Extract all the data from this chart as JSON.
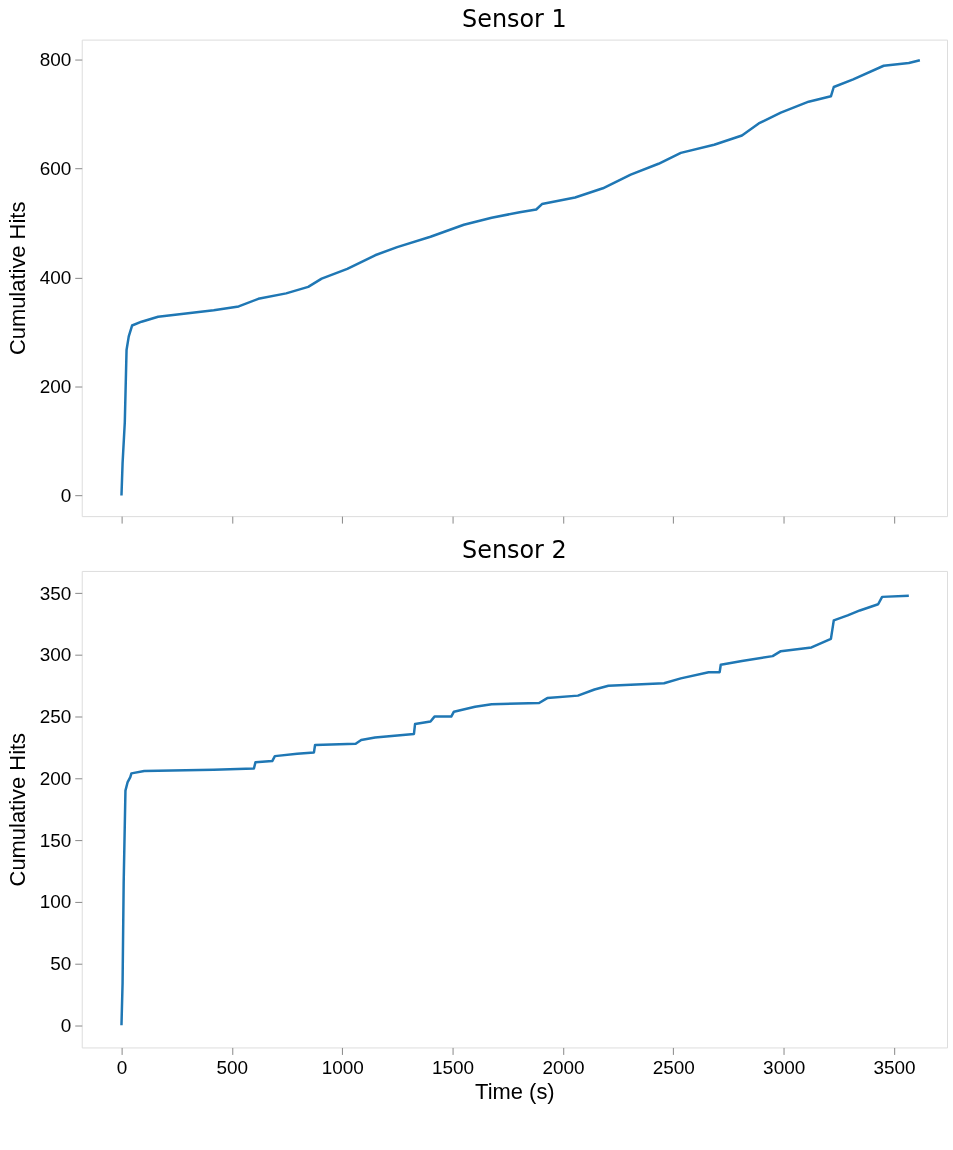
{
  "chart_data": [
    {
      "type": "line",
      "title": "Sensor 1",
      "ylabel": "Cumulative Hits",
      "xlim": [
        -180,
        3740
      ],
      "xticks": [
        0,
        500,
        1000,
        1500,
        2000,
        2500,
        3000,
        3500
      ],
      "ylim": [
        -38,
        837
      ],
      "yticks": [
        0,
        200,
        400,
        600,
        800
      ],
      "tick_labels": "y",
      "grid": false,
      "marker": "none",
      "series": [
        {
          "color": "#1f77b4",
          "x": [
            0,
            5,
            15,
            23,
            33,
            48,
            91,
            166,
            292,
            418,
            531,
            620,
            746,
            846,
            907,
            1023,
            1149,
            1249,
            1400,
            1551,
            1677,
            1804,
            1879,
            1905,
            2055,
            2181,
            2307,
            2433,
            2534,
            2685,
            2811,
            2887,
            2987,
            3113,
            3214,
            3227,
            3315,
            3453,
            3567,
            3617
          ],
          "values": [
            0,
            59,
            134,
            267,
            292,
            312,
            319,
            328,
            334,
            340,
            347,
            361,
            371,
            383,
            398,
            416,
            441,
            456,
            475,
            497,
            510,
            520,
            525,
            535,
            547,
            564,
            589,
            609,
            629,
            644,
            661,
            683,
            703,
            723,
            733,
            750,
            764,
            789,
            794,
            799
          ]
        }
      ]
    },
    {
      "type": "line",
      "title": "Sensor 2",
      "xlabel": "Time (s)",
      "ylabel": "Cumulative Hits",
      "xlim": [
        -180,
        3740
      ],
      "xticks": [
        0,
        500,
        1000,
        1500,
        2000,
        2500,
        3000,
        3500
      ],
      "ylim": [
        -18,
        368
      ],
      "yticks": [
        0,
        50,
        100,
        150,
        200,
        250,
        300,
        350
      ],
      "grid": false,
      "marker": "none",
      "series": [
        {
          "color": "#1f77b4",
          "x": [
            0,
            5,
            10,
            18,
            28,
            40,
            45,
            103,
            418,
            600,
            607,
            683,
            695,
            796,
            872,
            877,
            1061,
            1086,
            1149,
            1325,
            1330,
            1400,
            1418,
            1494,
            1506,
            1602,
            1677,
            1892,
            1929,
            2068,
            2143,
            2206,
            2458,
            2534,
            2660,
            2710,
            2715,
            2811,
            2950,
            2987,
            3126,
            3214,
            3227,
            3290,
            3345,
            3428,
            3446,
            3567
          ],
          "values": [
            0,
            34,
            116,
            190,
            197,
            201,
            204,
            206,
            207,
            208,
            213,
            214,
            218,
            220,
            221,
            227,
            228,
            231,
            233,
            236,
            244,
            246,
            250,
            250,
            254,
            258,
            260,
            261,
            265,
            267,
            272,
            275,
            277,
            281,
            286,
            286,
            292,
            295,
            299,
            303,
            306,
            313,
            328,
            332,
            336,
            341,
            347,
            348
          ]
        }
      ]
    }
  ]
}
